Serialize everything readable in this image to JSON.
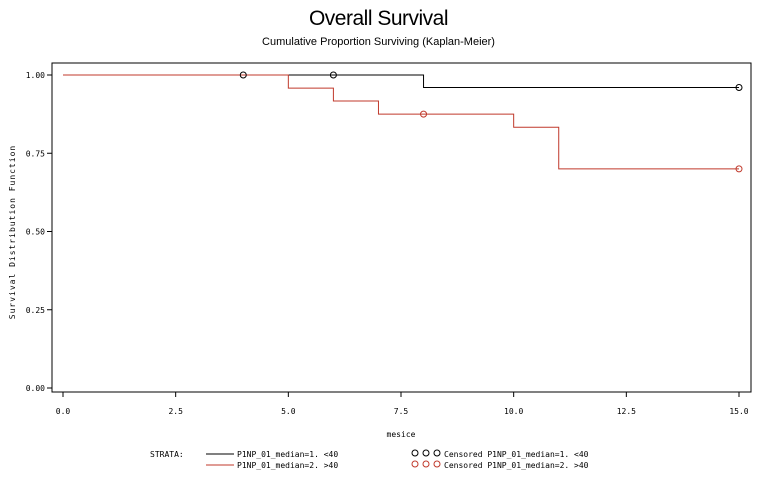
{
  "chart_data": {
    "type": "line",
    "step": true,
    "title": "Overall Survival",
    "subtitle": "Cumulative Proportion Surviving (Kaplan-Meier)",
    "xlabel": "mesice",
    "ylabel": "Survival Distribution Function",
    "xlim": [
      0,
      15
    ],
    "ylim": [
      0,
      1
    ],
    "xticks": [
      "0.0",
      "2.5",
      "5.0",
      "7.5",
      "10.0",
      "12.5",
      "15.0"
    ],
    "yticks": [
      "0.00",
      "0.25",
      "0.50",
      "0.75",
      "1.00"
    ],
    "grid": false,
    "legend": {
      "position": "bottom",
      "strata_label": "STRATA:"
    },
    "series": [
      {
        "name": "P1NP_01_median=1. <40",
        "censored_name": "Censored P1NP_01_median=1. <40",
        "color": "#000000",
        "steps": [
          [
            0,
            1.0
          ],
          [
            8,
            0.96
          ],
          [
            15,
            0.96
          ]
        ],
        "censored": [
          [
            4,
            1.0
          ],
          [
            6,
            1.0
          ],
          [
            15,
            0.96
          ]
        ]
      },
      {
        "name": "P1NP_01_median=2. >40",
        "censored_name": "Censored P1NP_01_median=2. >40",
        "color": "#c0392b",
        "steps": [
          [
            0,
            1.0
          ],
          [
            5,
            0.958
          ],
          [
            6,
            0.917
          ],
          [
            7,
            0.875
          ],
          [
            10,
            0.833
          ],
          [
            11,
            0.7
          ],
          [
            15,
            0.7
          ]
        ],
        "censored": [
          [
            8,
            0.875
          ],
          [
            15,
            0.7
          ]
        ]
      }
    ]
  }
}
